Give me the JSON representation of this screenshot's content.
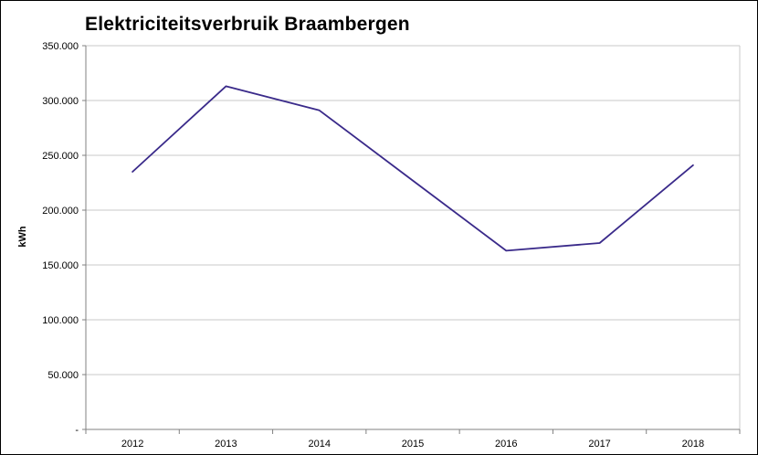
{
  "chart_data": {
    "type": "line",
    "title": "Elektriciteitsverbruik Braambergen",
    "xlabel": "",
    "ylabel": "kWh",
    "categories": [
      "2012",
      "2013",
      "2014",
      "2015",
      "2016",
      "2017",
      "2018"
    ],
    "series": [
      {
        "values": [
          235000,
          313000,
          291000,
          227000,
          163000,
          170000,
          241000
        ]
      }
    ],
    "ylim": [
      0,
      350000
    ],
    "y_ticks": [
      0,
      50000,
      100000,
      150000,
      200000,
      250000,
      300000,
      350000
    ],
    "y_tick_labels": [
      "-",
      "50.000",
      "100.000",
      "150.000",
      "200.000",
      "250.000",
      "300.000",
      "350.000"
    ],
    "grid": true,
    "legend": "none",
    "colors": {
      "line": "#3a2a8a",
      "grid": "#c8c8c8",
      "axis": "#808080"
    }
  }
}
